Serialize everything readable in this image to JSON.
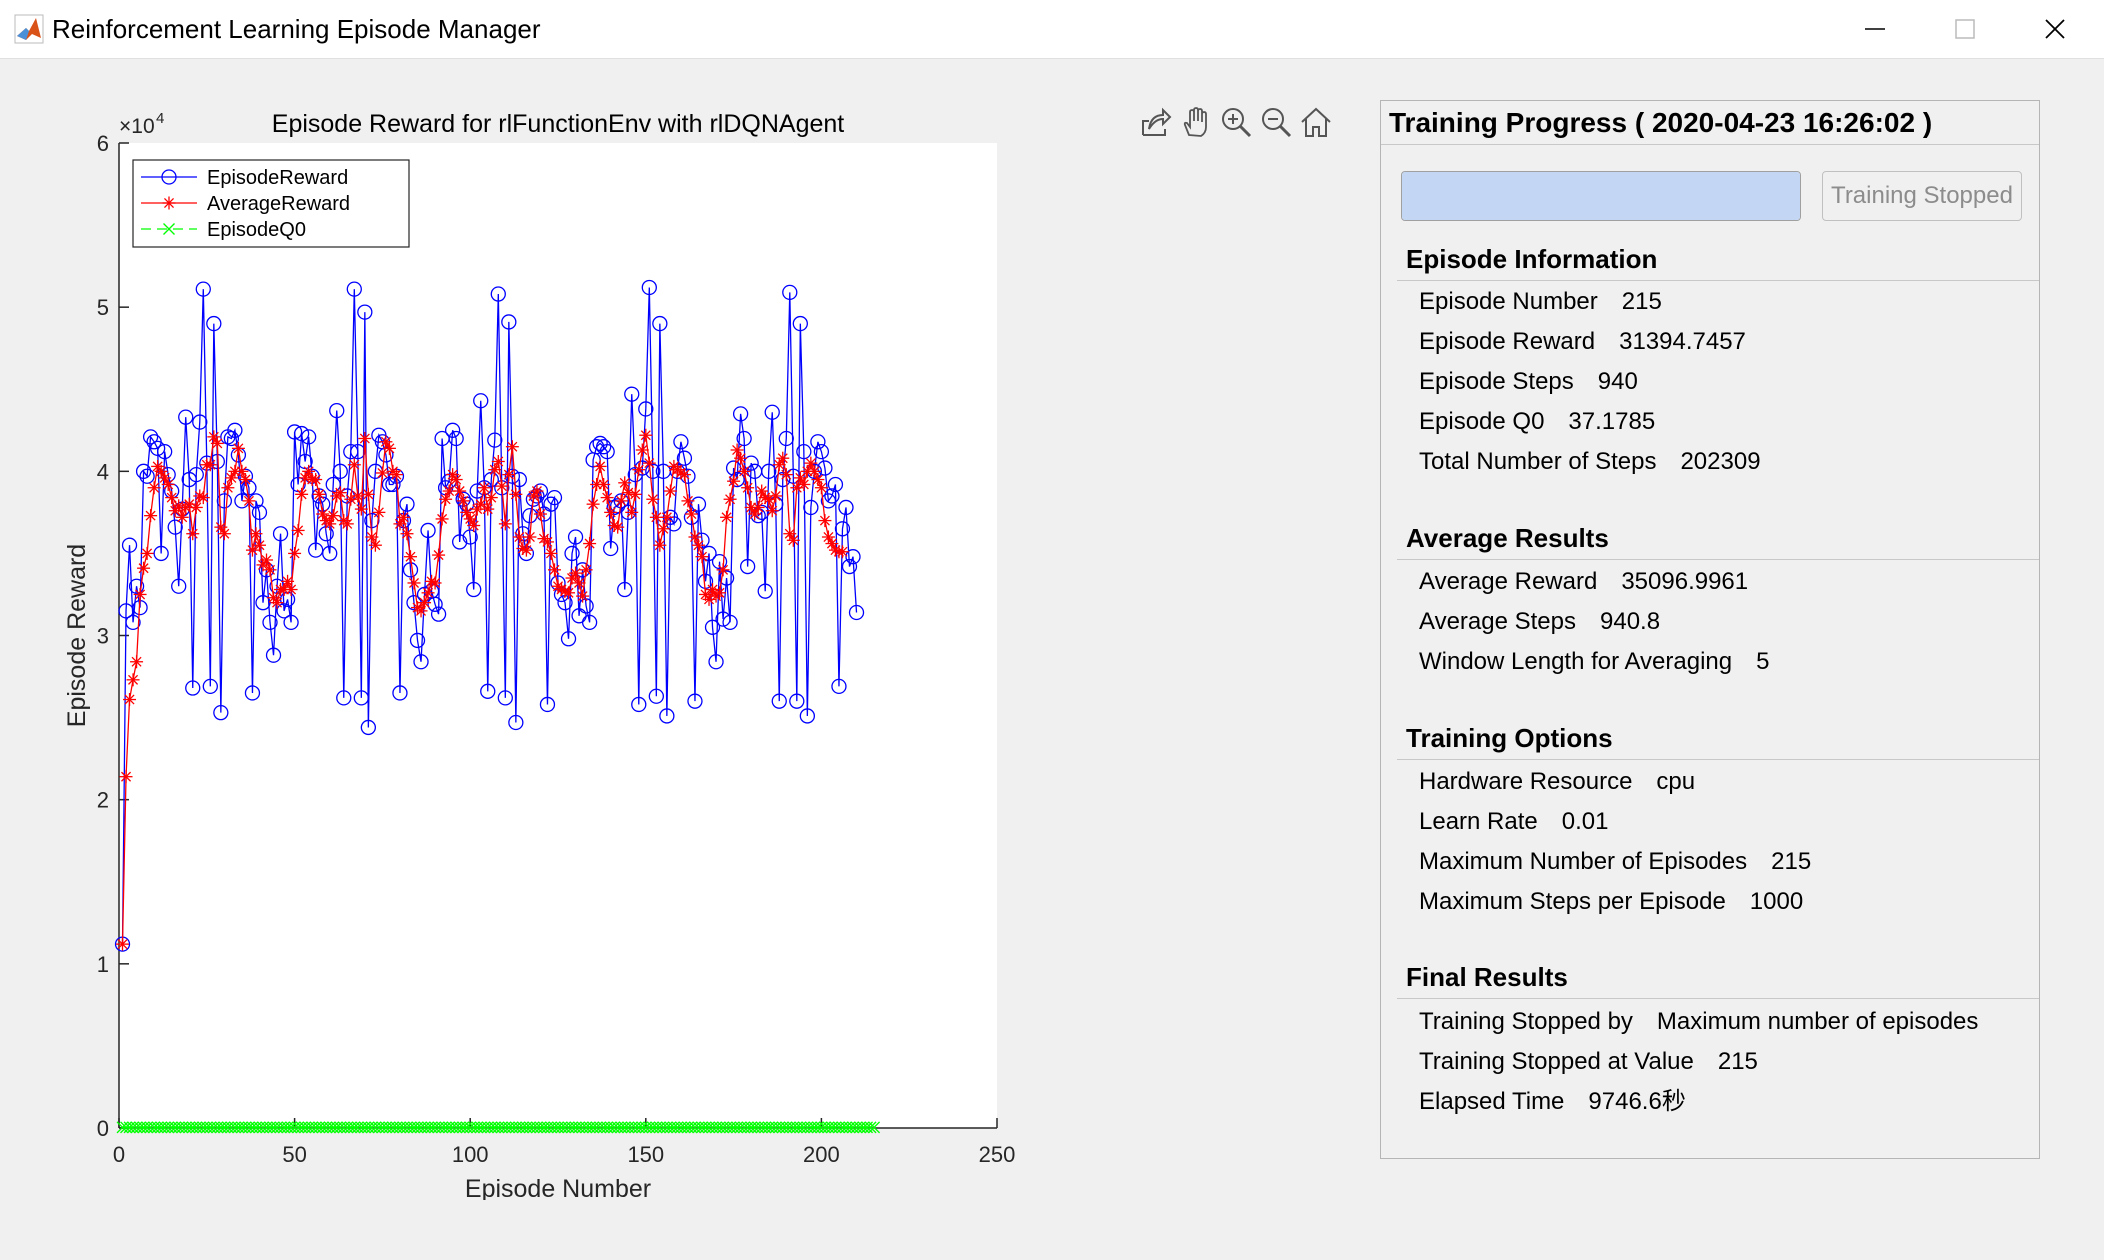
{
  "window": {
    "title": "Reinforcement Learning Episode Manager",
    "icon": "matlab-icon"
  },
  "toolbar": {
    "icons": [
      "export-icon",
      "pan-hand-icon",
      "zoom-in-icon",
      "zoom-out-icon",
      "home-icon"
    ]
  },
  "panel": {
    "title": "Training Progress ( 2020-04-23 16:26:02 )",
    "progress": 1.0,
    "stop_button_label": "Training Stopped",
    "sections": [
      {
        "heading": "Episode Information",
        "rows": [
          {
            "label": "Episode Number",
            "value": "215"
          },
          {
            "label": "Episode Reward",
            "value": "31394.7457"
          },
          {
            "label": "Episode Steps",
            "value": "940"
          },
          {
            "label": "Episode Q0",
            "value": "37.1785"
          },
          {
            "label": "Total Number of Steps",
            "value": "202309"
          }
        ]
      },
      {
        "heading": "Average Results",
        "rows": [
          {
            "label": "Average Reward",
            "value": "35096.9961"
          },
          {
            "label": "Average Steps",
            "value": "940.8"
          },
          {
            "label": "Window Length for Averaging",
            "value": "5"
          }
        ]
      },
      {
        "heading": "Training Options",
        "rows": [
          {
            "label": "Hardware Resource",
            "value": "cpu"
          },
          {
            "label": "Learn Rate",
            "value": "0.01"
          },
          {
            "label": "Maximum Number of Episodes",
            "value": "215"
          },
          {
            "label": "Maximum Steps per Episode",
            "value": "1000"
          }
        ]
      },
      {
        "heading": "Final Results",
        "rows": [
          {
            "label": "Training Stopped by",
            "value": "Maximum number of episodes"
          },
          {
            "label": "Training Stopped at Value",
            "value": "215"
          },
          {
            "label": "Elapsed Time",
            "value": "9746.6秒"
          }
        ]
      }
    ]
  },
  "chart_data": {
    "type": "line",
    "title": "Episode Reward for rlFunctionEnv with rlDQNAgent",
    "xlabel": "Episode Number",
    "ylabel": "Episode Reward",
    "y_exponent_label": "×10",
    "y_exponent_power": "4",
    "xlim": [
      0,
      250
    ],
    "ylim": [
      0,
      6
    ],
    "xticks": [
      0,
      50,
      100,
      150,
      200,
      250
    ],
    "yticks": [
      0,
      1,
      2,
      3,
      4,
      5,
      6
    ],
    "legend_location": "top-left",
    "x_first": 1,
    "series": [
      {
        "name": "EpisodeReward",
        "color": "#0000ff",
        "marker": "circle",
        "values": [
          1.12,
          3.15,
          3.55,
          3.08,
          3.3,
          3.17,
          4.0,
          3.97,
          4.21,
          4.18,
          4.14,
          3.5,
          4.12,
          3.98,
          3.88,
          3.66,
          3.3,
          3.77,
          4.33,
          3.95,
          2.68,
          3.98,
          4.3,
          5.11,
          4.05,
          2.69,
          4.9,
          4.06,
          2.53,
          3.82,
          4.21,
          4.2,
          4.25,
          4.1,
          3.82,
          3.97,
          3.9,
          2.65,
          3.82,
          3.75,
          3.2,
          3.4,
          3.08,
          2.88,
          3.3,
          3.62,
          3.15,
          3.22,
          3.08,
          4.24,
          3.92,
          4.23,
          4.06,
          4.21,
          3.97,
          3.52,
          3.85,
          3.8,
          3.62,
          3.5,
          3.92,
          4.37,
          4.0,
          2.62,
          3.85,
          4.12,
          5.11,
          4.12,
          2.62,
          4.97,
          2.44,
          3.7,
          4.0,
          4.22,
          4.18,
          4.1,
          3.92,
          3.92,
          3.97,
          2.65,
          3.7,
          3.8,
          3.4,
          3.2,
          2.97,
          2.84,
          3.25,
          3.64,
          3.27,
          3.19,
          3.13,
          4.2,
          3.9,
          3.94,
          4.25,
          4.2,
          3.57,
          3.83,
          3.8,
          3.6,
          3.28,
          3.88,
          4.43,
          3.9,
          2.66,
          3.95,
          4.19,
          5.08,
          3.9,
          2.62,
          4.91,
          3.97,
          2.47,
          3.95,
          3.62,
          3.5,
          3.73,
          3.83,
          3.85,
          3.88,
          3.74,
          2.58,
          3.8,
          3.84,
          3.32,
          3.25,
          3.2,
          2.98,
          3.5,
          3.6,
          3.12,
          3.4,
          3.18,
          3.08,
          4.07,
          4.15,
          4.17,
          4.15,
          4.12,
          3.53,
          3.78,
          3.79,
          3.82,
          3.28,
          3.75,
          4.47,
          3.98,
          2.58,
          4.02,
          4.38,
          5.12,
          4.0,
          2.63,
          4.9,
          4.0,
          2.51,
          3.72,
          3.68,
          4.0,
          4.18,
          4.08,
          3.97,
          3.72,
          2.6,
          3.8,
          3.58,
          3.33,
          3.5,
          3.05,
          2.84,
          3.45,
          3.1,
          3.35,
          3.08,
          4.02,
          3.95,
          4.35,
          4.2,
          3.42,
          4.05,
          4.0,
          3.73,
          3.75,
          3.27,
          4.0,
          4.36,
          3.8,
          2.6,
          3.95,
          4.2,
          5.09,
          3.97,
          2.6,
          4.9,
          4.12,
          2.51,
          3.78,
          4.0,
          4.18,
          4.12,
          4.02,
          3.82,
          3.85,
          3.92,
          2.69,
          3.65,
          3.78,
          3.42,
          3.48,
          3.14
        ]
      },
      {
        "name": "AverageReward",
        "color": "#ff0000",
        "marker": "asterisk",
        "values": [
          1.12,
          2.14,
          2.61,
          2.73,
          2.84,
          3.25,
          3.41,
          3.5,
          3.73,
          3.9,
          4.03,
          4.0,
          3.96,
          3.92,
          3.84,
          3.76,
          3.79,
          3.72,
          3.78,
          3.8,
          3.62,
          3.78,
          3.85,
          3.84,
          4.04,
          4.04,
          4.21,
          4.17,
          3.66,
          3.62,
          3.9,
          3.96,
          4.0,
          4.14,
          4.0,
          3.95,
          3.82,
          3.52,
          3.62,
          3.55,
          3.43,
          3.46,
          3.4,
          3.23,
          3.2,
          3.28,
          3.28,
          3.33,
          3.28,
          3.5,
          3.64,
          3.86,
          3.96,
          4.0,
          3.95,
          3.95,
          3.86,
          3.74,
          3.7,
          3.68,
          3.73,
          3.85,
          3.87,
          3.7,
          3.68,
          3.83,
          4.04,
          3.85,
          3.77,
          4.2,
          3.86,
          3.6,
          3.55,
          3.75,
          3.99,
          4.18,
          4.14,
          4.0,
          3.98,
          3.68,
          3.72,
          3.62,
          3.48,
          3.32,
          3.17,
          3.15,
          3.2,
          3.26,
          3.33,
          3.32,
          3.49,
          3.71,
          3.83,
          3.88,
          3.98,
          3.95,
          3.88,
          3.82,
          3.75,
          3.71,
          3.67,
          3.77,
          3.8,
          3.9,
          3.77,
          3.84,
          4.01,
          4.06,
          3.91,
          3.68,
          3.98,
          4.15,
          3.86,
          3.6,
          3.53,
          3.52,
          3.6,
          3.85,
          3.88,
          3.74,
          3.59,
          3.57,
          3.5,
          3.4,
          3.3,
          3.28,
          3.27,
          3.26,
          3.35,
          3.38,
          3.32,
          3.24,
          3.4,
          3.56,
          3.8,
          3.92,
          4.03,
          3.92,
          3.84,
          3.75,
          3.67,
          3.66,
          3.82,
          3.93,
          3.87,
          3.75,
          3.86,
          4.01,
          4.13,
          4.22,
          4.05,
          3.83,
          3.72,
          3.55,
          3.65,
          3.72,
          3.88,
          4.03,
          4.01,
          3.99,
          3.98,
          3.82,
          3.74,
          3.6,
          3.55,
          3.48,
          3.25,
          3.22,
          3.28,
          3.24,
          3.26,
          3.4,
          3.72,
          3.83,
          3.94,
          4.13,
          4.08,
          4.0,
          3.9,
          3.78,
          3.74,
          3.78,
          3.88,
          3.84,
          3.83,
          3.76,
          3.85,
          4.04,
          4.08,
          3.98,
          3.62,
          3.58,
          3.9,
          3.96,
          3.92,
          4.0,
          4.05,
          4.0,
          3.95,
          3.9,
          3.7,
          3.6,
          3.56,
          3.52,
          3.51,
          3.51
        ]
      },
      {
        "name": "EpisodeQ0",
        "color": "#00ff00",
        "marker": "x",
        "constant_value": 0.0037,
        "count": 215
      }
    ]
  }
}
